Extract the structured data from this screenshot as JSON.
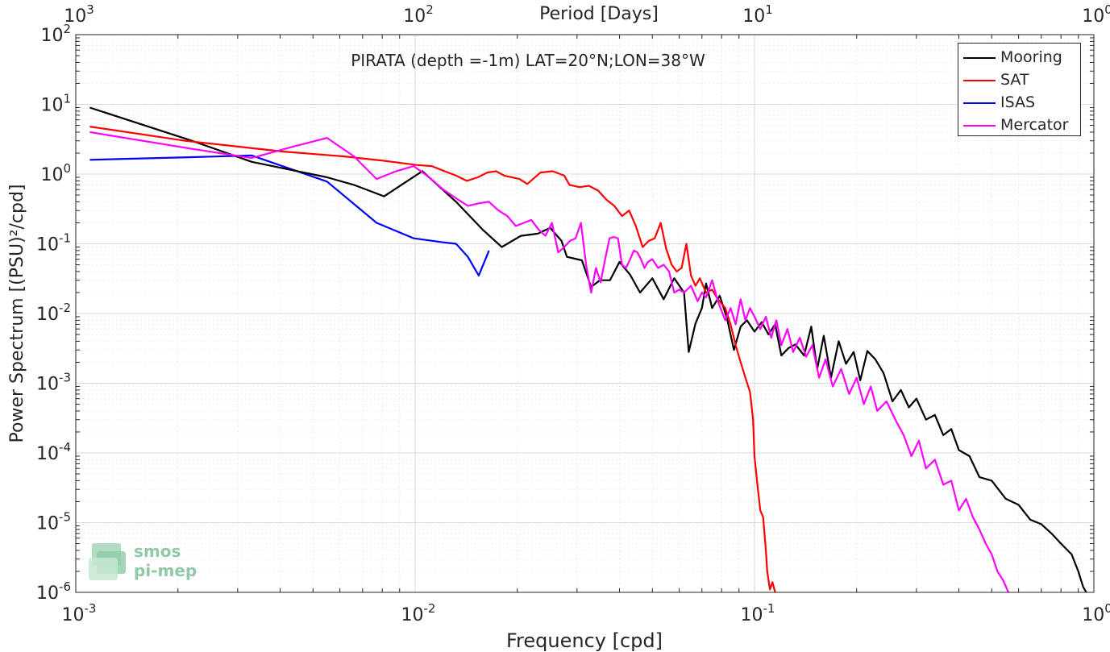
{
  "chart_data": {
    "type": "line",
    "title": "PIRATA (depth =-1m) LAT=20°N;LON=38°W",
    "xlabel": "Frequency [cpd]",
    "ylabel": "Power Spectrum [(PSU)²/cpd]",
    "top_xlabel": "Period [Days]",
    "xscale": "log",
    "yscale": "log",
    "xlim": [
      0.001,
      1
    ],
    "ylim": [
      1e-06,
      100
    ],
    "grid": true,
    "legend_position": "top-right",
    "x_ticks": [
      {
        "base": "10",
        "exp": "-3"
      },
      {
        "base": "10",
        "exp": "-2"
      },
      {
        "base": "10",
        "exp": "-1"
      },
      {
        "base": "10",
        "exp": "0"
      }
    ],
    "top_ticks": [
      {
        "base": "10",
        "exp": "3"
      },
      {
        "base": "10",
        "exp": "2"
      },
      {
        "base": "10",
        "exp": "1"
      },
      {
        "base": "10",
        "exp": "0"
      }
    ],
    "y_ticks": [
      {
        "base": "10",
        "exp": "-6"
      },
      {
        "base": "10",
        "exp": "-5"
      },
      {
        "base": "10",
        "exp": "-4"
      },
      {
        "base": "10",
        "exp": "-3"
      },
      {
        "base": "10",
        "exp": "-2"
      },
      {
        "base": "10",
        "exp": "-1"
      },
      {
        "base": "10",
        "exp": "0"
      },
      {
        "base": "10",
        "exp": "1"
      },
      {
        "base": "10",
        "exp": "2"
      }
    ],
    "series": [
      {
        "name": "Mooring",
        "color": "#000000",
        "points": [
          [
            0.0011,
            9.0
          ],
          [
            0.0022,
            3.0
          ],
          [
            0.0033,
            1.5
          ],
          [
            0.0055,
            0.9
          ],
          [
            0.0066,
            0.7
          ],
          [
            0.0081,
            0.48
          ],
          [
            0.0105,
            1.1
          ],
          [
            0.0132,
            0.4
          ],
          [
            0.0158,
            0.16
          ],
          [
            0.018,
            0.09
          ],
          [
            0.0205,
            0.13
          ],
          [
            0.023,
            0.14
          ],
          [
            0.025,
            0.17
          ],
          [
            0.027,
            0.11
          ],
          [
            0.028,
            0.065
          ],
          [
            0.031,
            0.058
          ],
          [
            0.033,
            0.024
          ],
          [
            0.035,
            0.03
          ],
          [
            0.0375,
            0.03
          ],
          [
            0.04,
            0.055
          ],
          [
            0.043,
            0.036
          ],
          [
            0.046,
            0.02
          ],
          [
            0.05,
            0.032
          ],
          [
            0.054,
            0.016
          ],
          [
            0.058,
            0.032
          ],
          [
            0.062,
            0.02
          ],
          [
            0.064,
            0.0028
          ],
          [
            0.067,
            0.0072
          ],
          [
            0.07,
            0.012
          ],
          [
            0.072,
            0.027
          ],
          [
            0.075,
            0.012
          ],
          [
            0.079,
            0.018
          ],
          [
            0.083,
            0.0085
          ],
          [
            0.087,
            0.003
          ],
          [
            0.091,
            0.0065
          ],
          [
            0.095,
            0.008
          ],
          [
            0.1,
            0.0055
          ],
          [
            0.105,
            0.0075
          ],
          [
            0.11,
            0.005
          ],
          [
            0.115,
            0.007
          ],
          [
            0.12,
            0.0025
          ],
          [
            0.126,
            0.0032
          ],
          [
            0.132,
            0.0036
          ],
          [
            0.14,
            0.0025
          ],
          [
            0.147,
            0.0065
          ],
          [
            0.153,
            0.0016
          ],
          [
            0.16,
            0.0048
          ],
          [
            0.168,
            0.0012
          ],
          [
            0.177,
            0.004
          ],
          [
            0.186,
            0.0019
          ],
          [
            0.196,
            0.0028
          ],
          [
            0.205,
            0.0011
          ],
          [
            0.215,
            0.0029
          ],
          [
            0.227,
            0.0022
          ],
          [
            0.24,
            0.0014
          ],
          [
            0.255,
            0.00055
          ],
          [
            0.27,
            0.0008
          ],
          [
            0.285,
            0.00045
          ],
          [
            0.3,
            0.0006
          ],
          [
            0.32,
            0.0003
          ],
          [
            0.34,
            0.00035
          ],
          [
            0.36,
            0.00018
          ],
          [
            0.38,
            0.00022
          ],
          [
            0.4,
            0.00011
          ],
          [
            0.43,
            9e-05
          ],
          [
            0.46,
            4.5e-05
          ],
          [
            0.5,
            4e-05
          ],
          [
            0.55,
            2.2e-05
          ],
          [
            0.6,
            1.8e-05
          ],
          [
            0.65,
            1.1e-05
          ],
          [
            0.7,
            9.5e-06
          ],
          [
            0.75,
            7e-06
          ],
          [
            0.8,
            5e-06
          ],
          [
            0.86,
            3.5e-06
          ],
          [
            0.9,
            2e-06
          ],
          [
            0.93,
            1.2e-06
          ],
          [
            0.95,
            1e-06
          ]
        ]
      },
      {
        "name": "SAT",
        "color": "#ff0000",
        "points": [
          [
            0.0011,
            4.8
          ],
          [
            0.0021,
            3.0
          ],
          [
            0.0041,
            2.1
          ],
          [
            0.0061,
            1.8
          ],
          [
            0.0081,
            1.55
          ],
          [
            0.0101,
            1.35
          ],
          [
            0.0112,
            1.3
          ],
          [
            0.0122,
            1.1
          ],
          [
            0.0132,
            0.95
          ],
          [
            0.0142,
            0.8
          ],
          [
            0.0153,
            0.9
          ],
          [
            0.0163,
            1.05
          ],
          [
            0.0173,
            1.1
          ],
          [
            0.0183,
            0.95
          ],
          [
            0.0203,
            0.85
          ],
          [
            0.0214,
            0.72
          ],
          [
            0.0234,
            1.05
          ],
          [
            0.0254,
            1.1
          ],
          [
            0.0275,
            0.95
          ],
          [
            0.0285,
            0.7
          ],
          [
            0.0305,
            0.65
          ],
          [
            0.0325,
            0.68
          ],
          [
            0.0346,
            0.58
          ],
          [
            0.0366,
            0.43
          ],
          [
            0.0386,
            0.35
          ],
          [
            0.0407,
            0.25
          ],
          [
            0.0427,
            0.3
          ],
          [
            0.0447,
            0.18
          ],
          [
            0.0468,
            0.09
          ],
          [
            0.0488,
            0.11
          ],
          [
            0.0508,
            0.12
          ],
          [
            0.0529,
            0.2
          ],
          [
            0.0549,
            0.085
          ],
          [
            0.057,
            0.05
          ],
          [
            0.059,
            0.04
          ],
          [
            0.061,
            0.045
          ],
          [
            0.063,
            0.1
          ],
          [
            0.065,
            0.035
          ],
          [
            0.067,
            0.025
          ],
          [
            0.069,
            0.032
          ],
          [
            0.072,
            0.02
          ],
          [
            0.075,
            0.022
          ],
          [
            0.078,
            0.016
          ],
          [
            0.082,
            0.012
          ],
          [
            0.085,
            0.007
          ],
          [
            0.088,
            0.0035
          ],
          [
            0.091,
            0.002
          ],
          [
            0.094,
            0.0012
          ],
          [
            0.097,
            0.00075
          ],
          [
            0.099,
            0.0003
          ],
          [
            0.1,
            9e-05
          ],
          [
            0.102,
            3.5e-05
          ],
          [
            0.104,
            1.5e-05
          ],
          [
            0.106,
            1.2e-05
          ],
          [
            0.108,
            4e-06
          ],
          [
            0.109,
            2e-06
          ],
          [
            0.111,
            1.1e-06
          ],
          [
            0.113,
            1.4e-06
          ],
          [
            0.115,
            1e-06
          ]
        ]
      },
      {
        "name": "ISAS",
        "color": "#0000ff",
        "points": [
          [
            0.0011,
            1.6
          ],
          [
            0.0022,
            1.75
          ],
          [
            0.0033,
            1.85
          ],
          [
            0.0055,
            0.78
          ],
          [
            0.0077,
            0.2
          ],
          [
            0.0099,
            0.12
          ],
          [
            0.0121,
            0.105
          ],
          [
            0.0132,
            0.1
          ],
          [
            0.0143,
            0.065
          ],
          [
            0.0154,
            0.035
          ],
          [
            0.0165,
            0.08
          ]
        ]
      },
      {
        "name": "Mercator",
        "color": "#ff00ff",
        "points": [
          [
            0.0011,
            4.0
          ],
          [
            0.0022,
            2.3
          ],
          [
            0.0033,
            1.7
          ],
          [
            0.0044,
            2.5
          ],
          [
            0.0055,
            3.3
          ],
          [
            0.0066,
            1.8
          ],
          [
            0.0077,
            0.85
          ],
          [
            0.0088,
            1.1
          ],
          [
            0.0099,
            1.3
          ],
          [
            0.011,
            0.9
          ],
          [
            0.0121,
            0.6
          ],
          [
            0.0132,
            0.45
          ],
          [
            0.0143,
            0.35
          ],
          [
            0.0154,
            0.38
          ],
          [
            0.0165,
            0.4
          ],
          [
            0.0176,
            0.3
          ],
          [
            0.0187,
            0.25
          ],
          [
            0.0198,
            0.18
          ],
          [
            0.022,
            0.22
          ],
          [
            0.0231,
            0.16
          ],
          [
            0.0242,
            0.13
          ],
          [
            0.0253,
            0.2
          ],
          [
            0.0264,
            0.075
          ],
          [
            0.0275,
            0.09
          ],
          [
            0.0286,
            0.11
          ],
          [
            0.0297,
            0.12
          ],
          [
            0.0308,
            0.2
          ],
          [
            0.0319,
            0.05
          ],
          [
            0.033,
            0.02
          ],
          [
            0.0341,
            0.045
          ],
          [
            0.0352,
            0.028
          ],
          [
            0.0363,
            0.06
          ],
          [
            0.0374,
            0.12
          ],
          [
            0.0385,
            0.125
          ],
          [
            0.0396,
            0.12
          ],
          [
            0.0407,
            0.05
          ],
          [
            0.0418,
            0.045
          ],
          [
            0.043,
            0.06
          ],
          [
            0.0441,
            0.08
          ],
          [
            0.0452,
            0.075
          ],
          [
            0.0463,
            0.06
          ],
          [
            0.0474,
            0.045
          ],
          [
            0.0485,
            0.055
          ],
          [
            0.05,
            0.06
          ],
          [
            0.052,
            0.045
          ],
          [
            0.054,
            0.05
          ],
          [
            0.056,
            0.04
          ],
          [
            0.058,
            0.02
          ],
          [
            0.06,
            0.022
          ],
          [
            0.062,
            0.02
          ],
          [
            0.065,
            0.025
          ],
          [
            0.068,
            0.015
          ],
          [
            0.07,
            0.02
          ],
          [
            0.072,
            0.017
          ],
          [
            0.075,
            0.03
          ],
          [
            0.078,
            0.015
          ],
          [
            0.082,
            0.008
          ],
          [
            0.085,
            0.012
          ],
          [
            0.088,
            0.007
          ],
          [
            0.091,
            0.016
          ],
          [
            0.094,
            0.008
          ],
          [
            0.097,
            0.012
          ],
          [
            0.1,
            0.009
          ],
          [
            0.104,
            0.006
          ],
          [
            0.108,
            0.009
          ],
          [
            0.112,
            0.0045
          ],
          [
            0.116,
            0.008
          ],
          [
            0.12,
            0.0035
          ],
          [
            0.125,
            0.006
          ],
          [
            0.13,
            0.0028
          ],
          [
            0.136,
            0.0045
          ],
          [
            0.142,
            0.0024
          ],
          [
            0.148,
            0.0035
          ],
          [
            0.155,
            0.0012
          ],
          [
            0.162,
            0.0022
          ],
          [
            0.17,
            0.0009
          ],
          [
            0.18,
            0.0016
          ],
          [
            0.19,
            0.0007
          ],
          [
            0.2,
            0.0012
          ],
          [
            0.21,
            0.0005
          ],
          [
            0.22,
            0.0009
          ],
          [
            0.23,
            0.0004
          ],
          [
            0.245,
            0.00055
          ],
          [
            0.26,
            0.0003
          ],
          [
            0.275,
            0.00018
          ],
          [
            0.29,
            9e-05
          ],
          [
            0.305,
            0.00015
          ],
          [
            0.32,
            6e-05
          ],
          [
            0.34,
            8e-05
          ],
          [
            0.36,
            3.5e-05
          ],
          [
            0.38,
            4e-05
          ],
          [
            0.4,
            1.5e-05
          ],
          [
            0.42,
            2.2e-05
          ],
          [
            0.44,
            1.2e-05
          ],
          [
            0.46,
            8e-06
          ],
          [
            0.48,
            5e-06
          ],
          [
            0.5,
            3.5e-06
          ],
          [
            0.52,
            2e-06
          ],
          [
            0.54,
            1.5e-06
          ],
          [
            0.56,
            1e-06
          ]
        ]
      }
    ]
  },
  "logo": {
    "line1": "smos",
    "line2": "pi-mep"
  }
}
